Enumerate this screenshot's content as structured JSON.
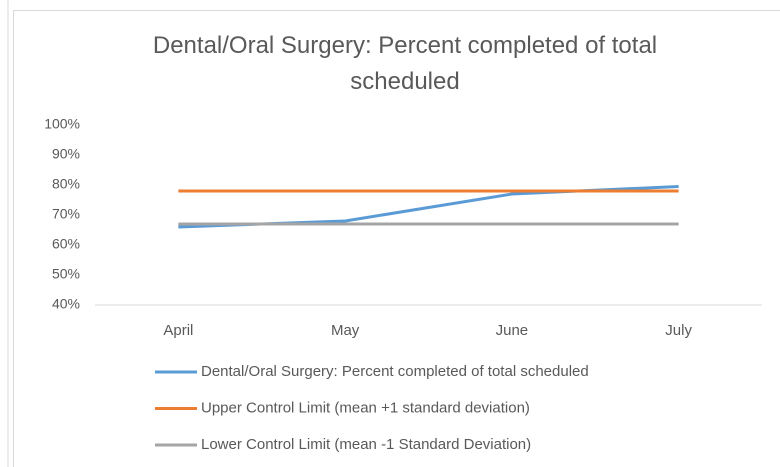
{
  "chart_data": {
    "type": "line",
    "title": "Dental/Oral Surgery: Percent completed of total scheduled",
    "categories": [
      "April",
      "May",
      "June",
      "July"
    ],
    "series": [
      {
        "name": "Dental/Oral Surgery: Percent completed of total scheduled",
        "color": "#5b9bd5",
        "values": [
          66,
          68,
          77,
          79.5
        ]
      },
      {
        "name": "Upper Control Limit (mean +1 standard deviation)",
        "color": "#ed7d31",
        "values": [
          78,
          78,
          78,
          78
        ]
      },
      {
        "name": "Lower Control Limit (mean -1 Standard Deviation)",
        "color": "#a5a5a5",
        "values": [
          67,
          67,
          67,
          67
        ]
      }
    ],
    "ylim": [
      40,
      100
    ],
    "yticks": [
      {
        "value": 40,
        "label": "40%"
      },
      {
        "value": 50,
        "label": "50%"
      },
      {
        "value": 60,
        "label": "60%"
      },
      {
        "value": 70,
        "label": "70%"
      },
      {
        "value": 80,
        "label": "80%"
      },
      {
        "value": 90,
        "label": "90%"
      },
      {
        "value": 100,
        "label": "100%"
      }
    ],
    "grid": false,
    "legend": "bottom"
  }
}
